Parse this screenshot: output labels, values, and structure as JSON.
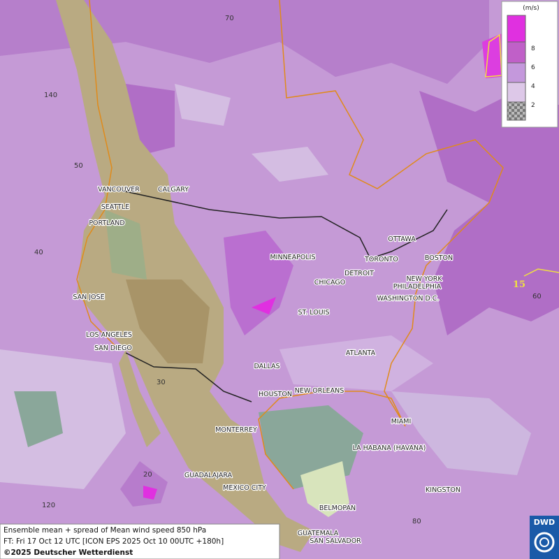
{
  "map": {
    "grid_labels": [
      70,
      140,
      50,
      40,
      60,
      30,
      20,
      120,
      80
    ],
    "contour_label": 15,
    "cities": [
      "VANCOUVER",
      "CALGARY",
      "SEATTLE",
      "PORTLAND",
      "MINNEAPOLIS",
      "TORONTO",
      "OTTAWA",
      "DETROIT",
      "BOSTON",
      "NEW YORK",
      "PHILADELPHIA",
      "CHICAGO",
      "WASHINGTON D.C.",
      "SAN JOSE",
      "ST. LOUIS",
      "LOS ANGELES",
      "SAN DIEGO",
      "ATLANTA",
      "DALLAS",
      "HOUSTON",
      "NEW ORLEANS",
      "MIAMI",
      "MONTERREY",
      "LA HABANA (HAVANA)",
      "GUADALAJARA",
      "MEXICO CITY",
      "KINGSTON",
      "BELMOPAN",
      "GUATEMALA",
      "SAN SALVADOR"
    ]
  },
  "legend": {
    "unit": "(m/s)",
    "levels": [
      8,
      6,
      4,
      2
    ]
  },
  "footer": {
    "line1": "Ensemble mean + spread of Mean wind speed 850 hPa",
    "line2": "FT: Fri 17 Oct 12 UTC [ICON EPS 2025 Oct 10 00UTC +180h]",
    "line3": "©2025 Deutscher Wetterdienst"
  },
  "logo": "DWD"
}
